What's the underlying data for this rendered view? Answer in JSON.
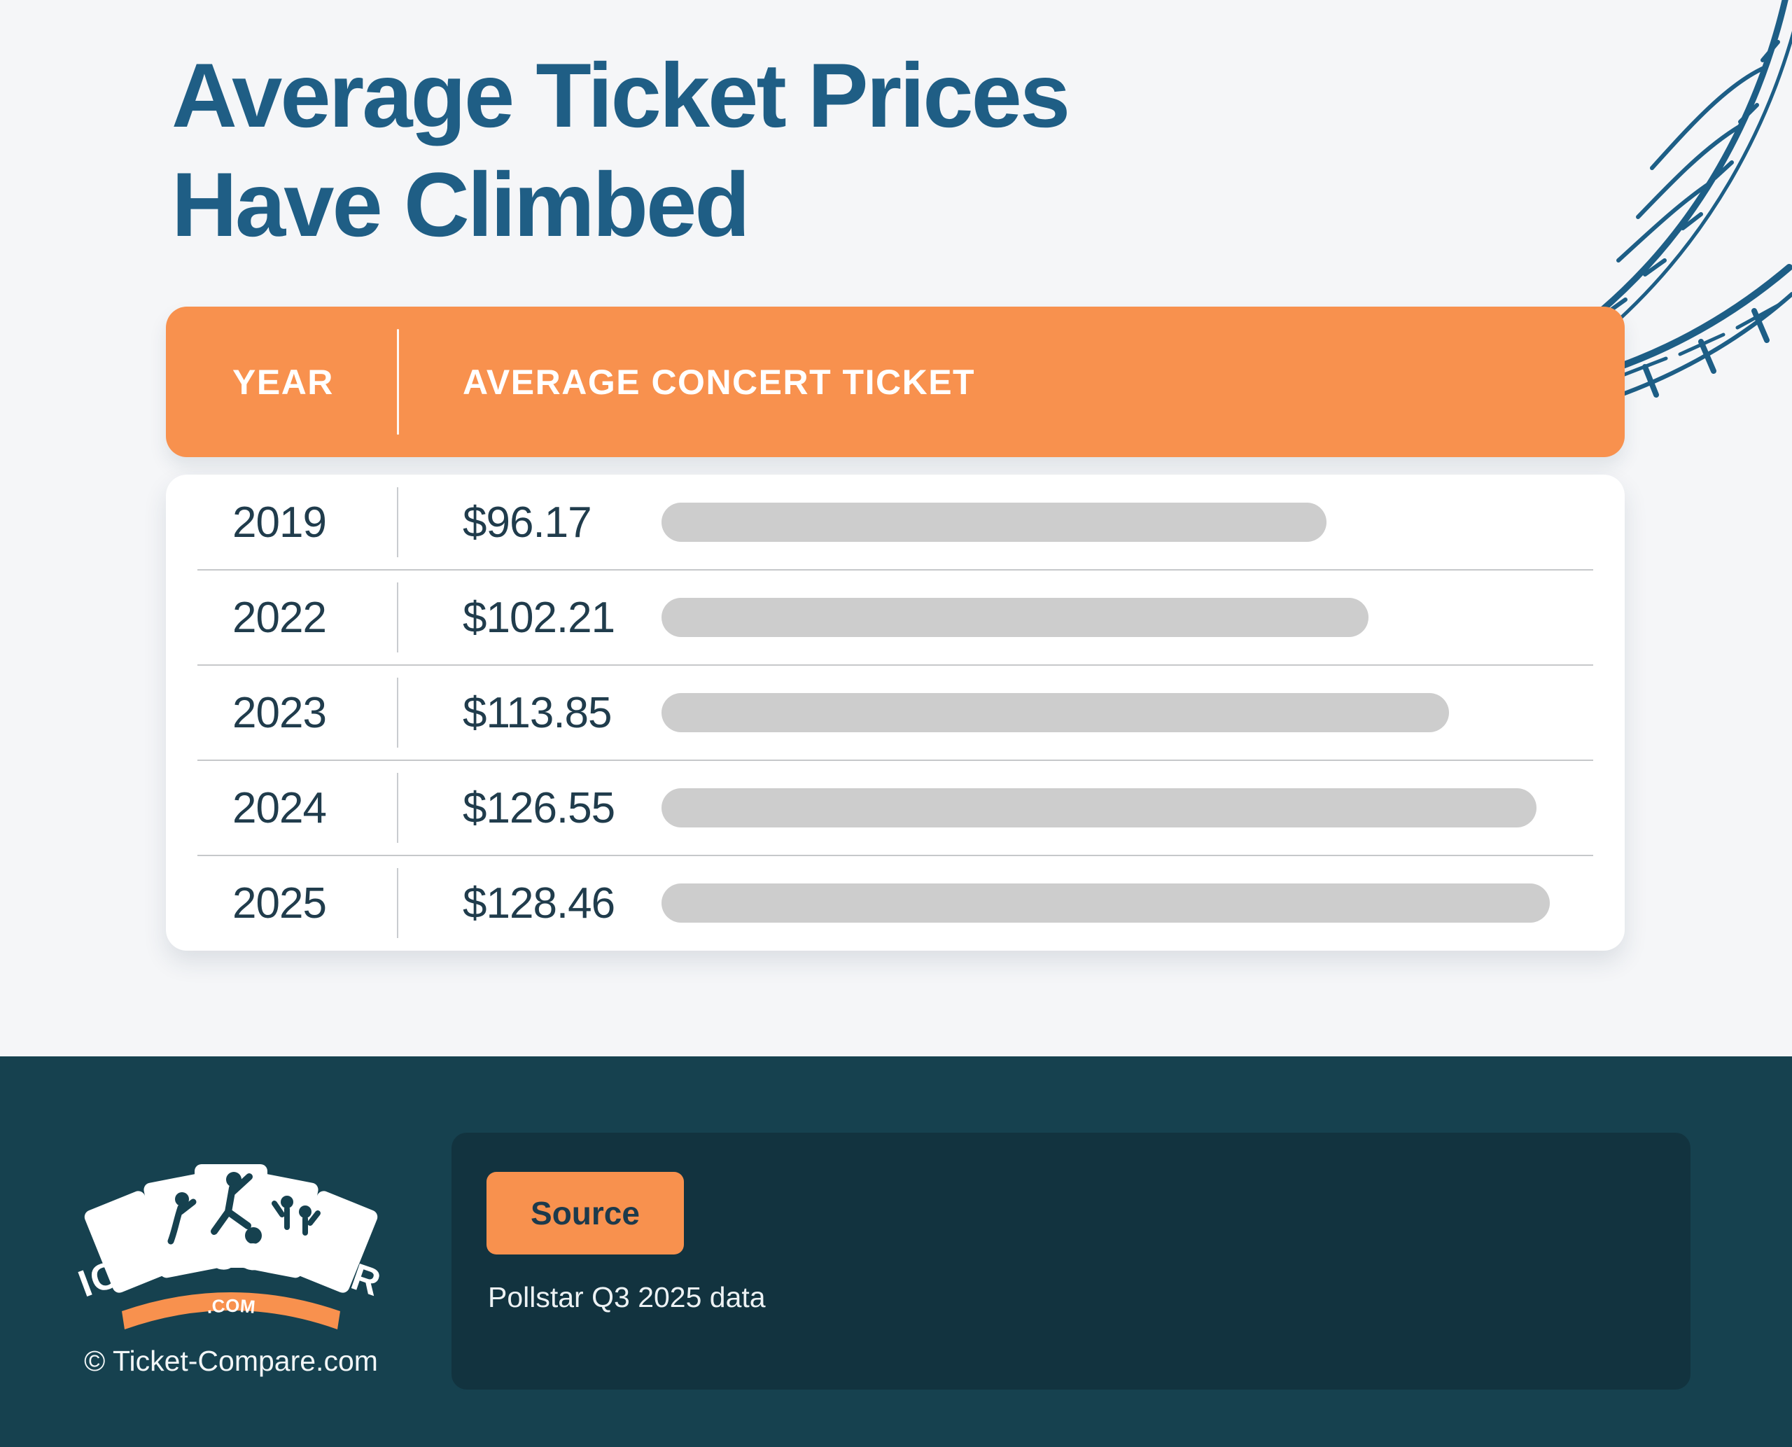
{
  "title": {
    "line1": "Average Ticket Prices",
    "line2": "Have Climbed"
  },
  "table": {
    "col_year": "YEAR",
    "col_price": "AVERAGE CONCERT TICKET",
    "rows": [
      {
        "year": "2019",
        "price": "$96.17"
      },
      {
        "year": "2022",
        "price": "$102.21"
      },
      {
        "year": "2023",
        "price": "$113.85"
      },
      {
        "year": "2024",
        "price": "$126.55"
      },
      {
        "year": "2025",
        "price": "$128.46"
      }
    ]
  },
  "chart_data": {
    "type": "bar",
    "orientation": "horizontal",
    "title": "Average Ticket Prices Have Climbed",
    "categories": [
      "2019",
      "2022",
      "2023",
      "2024",
      "2025"
    ],
    "values": [
      96.17,
      102.21,
      113.85,
      126.55,
      128.46
    ],
    "value_labels": [
      "$96.17",
      "$102.21",
      "$113.85",
      "$126.55",
      "$128.46"
    ],
    "xlabel": "Average Concert Ticket ($)",
    "ylabel": "Year",
    "xlim": [
      0,
      128.46
    ],
    "grid": false,
    "legend": false,
    "bar_color": "#CDCDCD"
  },
  "footer": {
    "logo_text": "TICKET-COMPARE",
    "logo_sub": ".COM",
    "copyright": "© Ticket-Compare.com",
    "source_button": "Source",
    "source_text": "Pollstar Q3 2025 data"
  },
  "colors": {
    "page_bg": "#F5F6F8",
    "title": "#1F5E85",
    "header_bg": "#F8914E",
    "header_text": "#FFFFFF",
    "row_text": "#203C4C",
    "bar": "#CDCDCD",
    "footer_bg": "#16414F",
    "footer_panel": "#12333F",
    "button_bg": "#F8914E",
    "button_text": "#1C3A4C",
    "illustration": "#1D5E86"
  }
}
